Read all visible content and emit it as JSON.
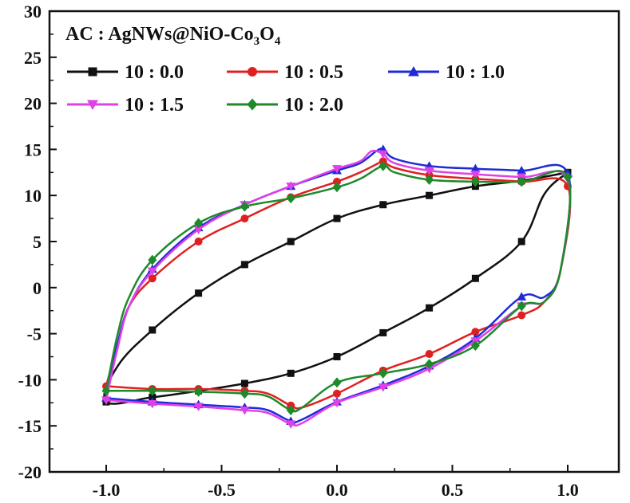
{
  "chart_data": {
    "type": "line",
    "title": "",
    "xlabel": "",
    "ylabel": "",
    "xlim": [
      -1.0,
      1.0
    ],
    "ylim": [
      -20,
      30
    ],
    "xticks": [
      -1.0,
      -0.5,
      0.0,
      0.5,
      1.0
    ],
    "xtick_labels": [
      "-1.0",
      "-0.5",
      "0.0",
      "0.5",
      "1.0"
    ],
    "yticks": [
      -20,
      -15,
      -10,
      -5,
      0,
      5,
      10,
      15,
      20,
      25,
      30
    ],
    "ytick_labels": [
      "-20",
      "-15",
      "-10",
      "-5",
      "0",
      "5",
      "10",
      "15",
      "20",
      "25",
      "30"
    ],
    "grid": false,
    "legend_title": {
      "prefix": "AC : AgNWs@NiO-Co",
      "sub1": "3",
      "mid": "O",
      "sub2": "4"
    },
    "legend_placement": "top-left",
    "series": [
      {
        "name": "10 : 0.0",
        "color": "#111111",
        "marker": "square",
        "points": [
          [
            1.0,
            12.5
          ],
          [
            0.9,
            10.2
          ],
          [
            0.8,
            5.0
          ],
          [
            0.6,
            1.0
          ],
          [
            0.4,
            -2.2
          ],
          [
            0.2,
            -4.9
          ],
          [
            0.0,
            -7.5
          ],
          [
            -0.2,
            -9.3
          ],
          [
            -0.4,
            -10.4
          ],
          [
            -0.6,
            -11.2
          ],
          [
            -0.8,
            -11.9
          ],
          [
            -1.0,
            -12.4
          ],
          [
            -0.95,
            -8.5
          ],
          [
            -0.8,
            -4.6
          ],
          [
            -0.6,
            -0.6
          ],
          [
            -0.4,
            2.5
          ],
          [
            -0.2,
            5.0
          ],
          [
            0.0,
            7.5
          ],
          [
            0.2,
            9.0
          ],
          [
            0.4,
            10.0
          ],
          [
            0.6,
            11.0
          ],
          [
            0.8,
            11.6
          ],
          [
            1.0,
            12.5
          ]
        ],
        "marker_points": [
          [
            -1.0,
            -12.4
          ],
          [
            -0.8,
            -4.6
          ],
          [
            -0.6,
            -0.6
          ],
          [
            -0.4,
            2.5
          ],
          [
            -0.2,
            5.0
          ],
          [
            0.0,
            7.5
          ],
          [
            0.2,
            9.0
          ],
          [
            0.4,
            10.0
          ],
          [
            0.6,
            11.0
          ],
          [
            0.8,
            11.6
          ],
          [
            1.0,
            12.5
          ],
          [
            0.8,
            5.0
          ],
          [
            0.6,
            1.0
          ],
          [
            0.4,
            -2.2
          ],
          [
            0.2,
            -4.9
          ],
          [
            0.0,
            -7.5
          ],
          [
            -0.2,
            -9.3
          ],
          [
            -0.4,
            -10.4
          ],
          [
            -0.6,
            -11.2
          ],
          [
            -0.8,
            -11.9
          ]
        ]
      },
      {
        "name": "10 : 0.5",
        "color": "#e02020",
        "marker": "circle",
        "points": [
          [
            -1.0,
            -10.7
          ],
          [
            -0.95,
            -6.0
          ],
          [
            -0.9,
            -2.0
          ],
          [
            -0.8,
            1.0
          ],
          [
            -0.6,
            5.0
          ],
          [
            -0.4,
            7.5
          ],
          [
            -0.2,
            9.8
          ],
          [
            0.0,
            11.5
          ],
          [
            0.1,
            12.5
          ],
          [
            0.18,
            13.5
          ],
          [
            0.2,
            13.7
          ],
          [
            0.25,
            13.0
          ],
          [
            0.4,
            12.2
          ],
          [
            0.6,
            11.8
          ],
          [
            0.8,
            11.5
          ],
          [
            1.0,
            11.0
          ],
          [
            0.97,
            2.0
          ],
          [
            0.9,
            -1.5
          ],
          [
            0.8,
            -3.0
          ],
          [
            0.6,
            -4.8
          ],
          [
            0.4,
            -7.2
          ],
          [
            0.2,
            -9.0
          ],
          [
            0.0,
            -11.5
          ],
          [
            -0.15,
            -13.0
          ],
          [
            -0.2,
            -12.8
          ],
          [
            -0.3,
            -11.5
          ],
          [
            -0.4,
            -11.2
          ],
          [
            -0.6,
            -11.0
          ],
          [
            -0.8,
            -11.0
          ],
          [
            -1.0,
            -10.7
          ]
        ],
        "marker_points": [
          [
            -1.0,
            -10.7
          ],
          [
            -0.8,
            1.0
          ],
          [
            -0.6,
            5.0
          ],
          [
            -0.4,
            7.5
          ],
          [
            -0.2,
            9.8
          ],
          [
            0.0,
            11.5
          ],
          [
            0.2,
            13.7
          ],
          [
            0.4,
            12.2
          ],
          [
            0.6,
            11.8
          ],
          [
            0.8,
            11.5
          ],
          [
            1.0,
            11.0
          ],
          [
            0.8,
            -3.0
          ],
          [
            0.6,
            -4.8
          ],
          [
            0.4,
            -7.2
          ],
          [
            0.2,
            -9.0
          ],
          [
            0.0,
            -11.5
          ],
          [
            -0.2,
            -12.8
          ],
          [
            -0.4,
            -11.2
          ],
          [
            -0.6,
            -11.0
          ],
          [
            -0.8,
            -11.0
          ]
        ]
      },
      {
        "name": "10 : 1.0",
        "color": "#1f2bd6",
        "marker": "triangle-up",
        "points": [
          [
            -1.0,
            -12.0
          ],
          [
            -0.95,
            -6.0
          ],
          [
            -0.9,
            -2.0
          ],
          [
            -0.8,
            2.0
          ],
          [
            -0.6,
            6.5
          ],
          [
            -0.4,
            9.0
          ],
          [
            -0.2,
            11.0
          ],
          [
            0.0,
            12.7
          ],
          [
            0.1,
            13.5
          ],
          [
            0.17,
            14.8
          ],
          [
            0.2,
            15.0
          ],
          [
            0.25,
            14.0
          ],
          [
            0.4,
            13.2
          ],
          [
            0.6,
            12.9
          ],
          [
            0.8,
            12.7
          ],
          [
            1.0,
            12.4
          ],
          [
            0.97,
            2.0
          ],
          [
            0.9,
            -1.0
          ],
          [
            0.8,
            -1.0
          ],
          [
            0.6,
            -5.5
          ],
          [
            0.4,
            -8.5
          ],
          [
            0.2,
            -10.6
          ],
          [
            0.0,
            -12.4
          ],
          [
            -0.15,
            -14.3
          ],
          [
            -0.2,
            -14.5
          ],
          [
            -0.3,
            -13.3
          ],
          [
            -0.4,
            -13.0
          ],
          [
            -0.6,
            -12.7
          ],
          [
            -0.8,
            -12.4
          ],
          [
            -1.0,
            -12.0
          ]
        ],
        "marker_points": [
          [
            -1.0,
            -12.0
          ],
          [
            -0.8,
            2.0
          ],
          [
            -0.6,
            6.5
          ],
          [
            -0.4,
            9.0
          ],
          [
            -0.2,
            11.0
          ],
          [
            0.0,
            12.7
          ],
          [
            0.2,
            15.0
          ],
          [
            0.4,
            13.2
          ],
          [
            0.6,
            12.9
          ],
          [
            0.8,
            12.7
          ],
          [
            1.0,
            12.4
          ],
          [
            0.8,
            -1.0
          ],
          [
            0.6,
            -5.5
          ],
          [
            0.4,
            -8.5
          ],
          [
            0.2,
            -10.6
          ],
          [
            0.0,
            -12.4
          ],
          [
            -0.2,
            -14.5
          ],
          [
            -0.4,
            -13.0
          ],
          [
            -0.6,
            -12.7
          ],
          [
            -0.8,
            -12.4
          ]
        ]
      },
      {
        "name": "10 : 1.5",
        "color": "#e040e8",
        "marker": "triangle-down",
        "points": [
          [
            -1.0,
            -12.2
          ],
          [
            -0.95,
            -6.5
          ],
          [
            -0.9,
            -2.0
          ],
          [
            -0.8,
            1.8
          ],
          [
            -0.6,
            6.3
          ],
          [
            -0.4,
            9.0
          ],
          [
            -0.2,
            11.0
          ],
          [
            0.0,
            12.9
          ],
          [
            0.1,
            13.7
          ],
          [
            0.15,
            14.8
          ],
          [
            0.2,
            14.5
          ],
          [
            0.25,
            13.5
          ],
          [
            0.4,
            12.7
          ],
          [
            0.6,
            12.3
          ],
          [
            0.8,
            12.0
          ],
          [
            1.0,
            11.8
          ],
          [
            0.97,
            2.0
          ],
          [
            0.9,
            -1.5
          ],
          [
            0.8,
            -2.0
          ],
          [
            0.6,
            -5.8
          ],
          [
            0.4,
            -8.8
          ],
          [
            0.2,
            -10.8
          ],
          [
            0.0,
            -12.5
          ],
          [
            -0.15,
            -14.7
          ],
          [
            -0.2,
            -14.8
          ],
          [
            -0.3,
            -13.6
          ],
          [
            -0.4,
            -13.3
          ],
          [
            -0.6,
            -12.9
          ],
          [
            -0.8,
            -12.6
          ],
          [
            -1.0,
            -12.2
          ]
        ],
        "marker_points": [
          [
            -1.0,
            -12.2
          ],
          [
            -0.8,
            1.8
          ],
          [
            -0.6,
            6.3
          ],
          [
            -0.4,
            9.0
          ],
          [
            -0.2,
            11.0
          ],
          [
            0.0,
            12.9
          ],
          [
            0.2,
            14.5
          ],
          [
            0.4,
            12.7
          ],
          [
            0.6,
            12.3
          ],
          [
            0.8,
            12.0
          ],
          [
            1.0,
            11.8
          ],
          [
            0.8,
            -2.0
          ],
          [
            0.6,
            -5.8
          ],
          [
            0.4,
            -8.8
          ],
          [
            0.2,
            -10.8
          ],
          [
            0.0,
            -12.5
          ],
          [
            -0.2,
            -14.8
          ],
          [
            -0.4,
            -13.3
          ],
          [
            -0.6,
            -12.9
          ],
          [
            -0.8,
            -12.6
          ]
        ]
      },
      {
        "name": "10 : 2.0",
        "color": "#1e8a2a",
        "marker": "diamond",
        "points": [
          [
            -1.0,
            -11.2
          ],
          [
            -0.95,
            -5.0
          ],
          [
            -0.9,
            -1.0
          ],
          [
            -0.8,
            3.0
          ],
          [
            -0.6,
            7.0
          ],
          [
            -0.4,
            8.8
          ],
          [
            -0.2,
            9.7
          ],
          [
            0.0,
            10.9
          ],
          [
            0.1,
            11.8
          ],
          [
            0.2,
            13.2
          ],
          [
            0.25,
            12.5
          ],
          [
            0.4,
            11.7
          ],
          [
            0.6,
            11.5
          ],
          [
            0.8,
            11.5
          ],
          [
            1.0,
            12.0
          ],
          [
            0.97,
            2.0
          ],
          [
            0.9,
            -1.5
          ],
          [
            0.8,
            -2.0
          ],
          [
            0.6,
            -6.3
          ],
          [
            0.4,
            -8.3
          ],
          [
            0.2,
            -9.3
          ],
          [
            0.0,
            -10.3
          ],
          [
            -0.15,
            -13.0
          ],
          [
            -0.2,
            -13.3
          ],
          [
            -0.3,
            -11.8
          ],
          [
            -0.4,
            -11.5
          ],
          [
            -0.6,
            -11.3
          ],
          [
            -0.8,
            -11.2
          ],
          [
            -1.0,
            -11.2
          ]
        ],
        "marker_points": [
          [
            -1.0,
            -11.2
          ],
          [
            -0.8,
            3.0
          ],
          [
            -0.6,
            7.0
          ],
          [
            -0.4,
            8.8
          ],
          [
            -0.2,
            9.7
          ],
          [
            0.0,
            10.9
          ],
          [
            0.2,
            13.2
          ],
          [
            0.4,
            11.7
          ],
          [
            0.6,
            11.5
          ],
          [
            0.8,
            11.5
          ],
          [
            1.0,
            12.0
          ],
          [
            0.8,
            -2.0
          ],
          [
            0.6,
            -6.3
          ],
          [
            0.4,
            -8.3
          ],
          [
            0.2,
            -9.3
          ],
          [
            0.0,
            -10.3
          ],
          [
            -0.2,
            -13.3
          ],
          [
            -0.4,
            -11.5
          ],
          [
            -0.6,
            -11.3
          ],
          [
            -0.8,
            -11.2
          ]
        ]
      }
    ]
  }
}
